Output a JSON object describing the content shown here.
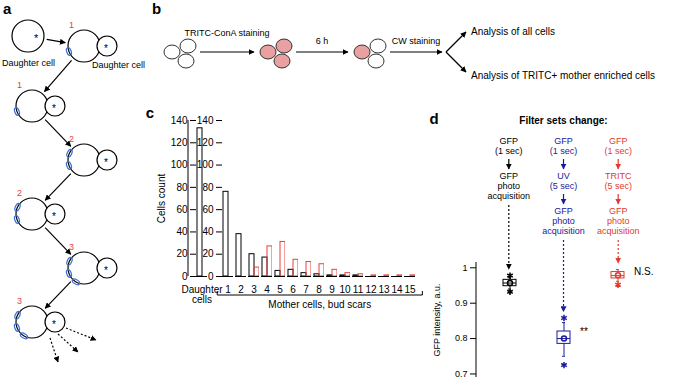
{
  "panel_labels": [
    "a",
    "b",
    "c",
    "d"
  ],
  "diagram_a": {
    "cell_labels": [
      "Daughter cell",
      "Daughter cell"
    ],
    "bud_scar_counts": [
      "1",
      "1",
      "2",
      "2",
      "3",
      "3"
    ],
    "birth_mark": "*"
  },
  "diagram_b": {
    "steps": [
      "TRITC-ConA staining",
      "6 h",
      "CW staining"
    ],
    "outputs": [
      "Analysis of all cells",
      "Analysis of TRITC+ mother enriched cells"
    ]
  },
  "chart_data": [
    {
      "type": "bar",
      "ylabel": "Cells count",
      "xlabel": "Mother cells, bud scars",
      "categories": [
        "Daughter cells",
        "1",
        "2",
        "3",
        "4",
        "5",
        "6",
        "7",
        "8",
        "9",
        "10",
        "11",
        "12",
        "13",
        "14",
        "15"
      ],
      "ylim": [
        0,
        140
      ],
      "yticks": [
        0,
        20,
        40,
        60,
        80,
        100,
        120,
        140
      ],
      "series": [
        {
          "color": "#000000",
          "values": [
            133,
            76,
            38,
            20,
            17,
            5,
            6,
            3,
            2,
            1,
            1,
            1,
            0,
            0,
            0,
            0
          ]
        },
        {
          "color": "#e8413c",
          "values": [
            0,
            0,
            0,
            8,
            27,
            31,
            15,
            13,
            11,
            6,
            3,
            2,
            1,
            1,
            1,
            1
          ]
        }
      ]
    },
    {
      "type": "box",
      "title": "Filter sets change:",
      "ylabel": "GFP intensity, a.u.",
      "categories": [
        null,
        null,
        null
      ],
      "ylim": [
        0.69,
        1.015
      ],
      "yticks": [
        0.7,
        0.8,
        0.9,
        1
      ],
      "series": [
        {
          "color": "#000000",
          "steps": [
            [
              "GFP",
              "(1 sec)"
            ],
            [
              "GFP",
              "photo",
              "acquisition"
            ]
          ],
          "whisker_low": 0.94,
          "q1": 0.948,
          "median": 0.957,
          "q3": 0.966,
          "whisker_high": 0.972,
          "mean": 0.957,
          "outliers": [
            0.932,
            0.978
          ]
        },
        {
          "color": "#1a1a9c",
          "steps": [
            [
              "GFP",
              "(1 sec)"
            ],
            [
              "UV",
              "(5 sec)"
            ],
            [
              "GFP",
              "photo",
              "acquisition"
            ]
          ],
          "whisker_low": 0.75,
          "q1": 0.785,
          "median": 0.8,
          "q3": 0.82,
          "whisker_high": 0.845,
          "mean": 0.8,
          "outliers": [
            0.725,
            0.858
          ],
          "annotation": "**"
        },
        {
          "color": "#e23a2e",
          "steps": [
            [
              "GFP",
              "(1 sec)"
            ],
            [
              "TRITC",
              "(5 sec)"
            ],
            [
              "GFP",
              "photo",
              "acquisition"
            ]
          ],
          "whisker_low": 0.962,
          "q1": 0.97,
          "median": 0.978,
          "q3": 0.988,
          "whisker_high": 0.995,
          "mean": 0.979,
          "outliers": [
            0.952
          ],
          "annotation": "N.S."
        }
      ]
    }
  ]
}
